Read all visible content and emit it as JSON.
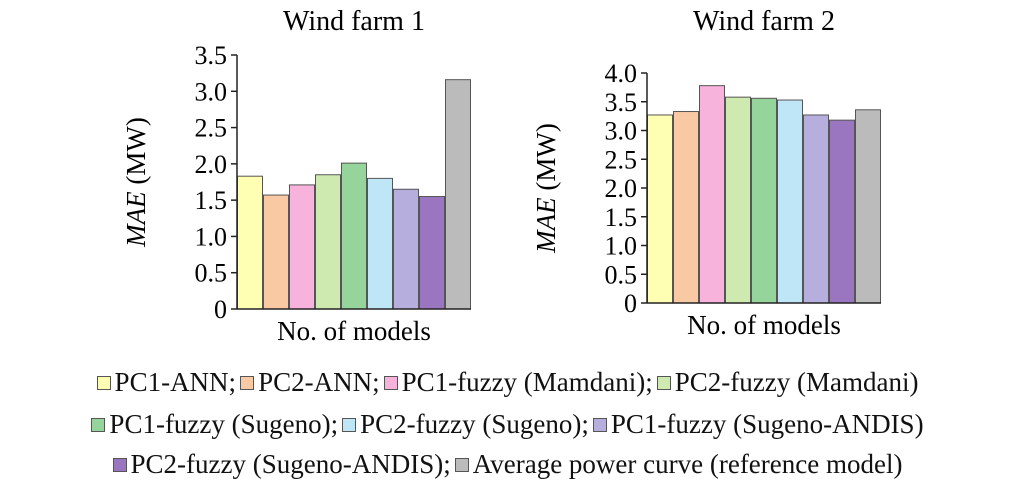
{
  "chart_data": [
    {
      "type": "bar",
      "title": "Wind farm 1",
      "xlabel": "No. of models",
      "ylabel_italic": "MAE",
      "ylabel_rest": " (MW)",
      "ylim": [
        0,
        3.5
      ],
      "yticks": [
        "0",
        "0.5",
        "1.0",
        "1.5",
        "2.0",
        "2.5",
        "3.0",
        "3.5"
      ],
      "yticks_values": [
        0,
        0.5,
        1.0,
        1.5,
        2.0,
        2.5,
        3.0,
        3.5
      ],
      "grid": false,
      "values": [
        1.83,
        1.57,
        1.71,
        1.85,
        2.01,
        1.8,
        1.65,
        1.55,
        3.16
      ]
    },
    {
      "type": "bar",
      "title": "Wind farm 2",
      "xlabel": "No. of models",
      "ylabel_italic": "MAE",
      "ylabel_rest": " (MW)",
      "ylim": [
        0,
        4.0
      ],
      "yticks": [
        "0",
        "0.5",
        "1.0",
        "1.5",
        "2.0",
        "2.5",
        "3.0",
        "3.5",
        "4.0"
      ],
      "yticks_values": [
        0,
        0.5,
        1.0,
        1.5,
        2.0,
        2.5,
        3.0,
        3.5,
        4.0
      ],
      "grid": false,
      "values": [
        3.27,
        3.33,
        3.78,
        3.58,
        3.56,
        3.53,
        3.27,
        3.18,
        3.36
      ]
    }
  ],
  "series": [
    {
      "name": "PC1-ANN;",
      "color": "#ffffb3"
    },
    {
      "name": "PC2-ANN;",
      "color": "#f9c9a4"
    },
    {
      "name": "PC1-fuzzy (Mamdani);",
      "color": "#f7b3dc"
    },
    {
      "name": "PC2-fuzzy (Mamdani)",
      "color": "#cfeab0"
    },
    {
      "name": "PC1-fuzzy (Sugeno);",
      "color": "#95d59c"
    },
    {
      "name": "PC2-fuzzy (Sugeno);",
      "color": "#bfe6f6"
    },
    {
      "name": "PC1-fuzzy (Sugeno-ANDIS)",
      "color": "#b6aedc"
    },
    {
      "name": "PC2-fuzzy (Sugeno-ANDIS);",
      "color": "#9a76c0"
    },
    {
      "name": "Average power curve (reference model)",
      "color": "#bcbbbc"
    }
  ],
  "legend": {
    "placement": "bottom",
    "rows": [
      [
        0,
        1,
        2,
        3
      ],
      [
        4,
        5,
        6
      ],
      [
        7,
        8
      ]
    ]
  }
}
